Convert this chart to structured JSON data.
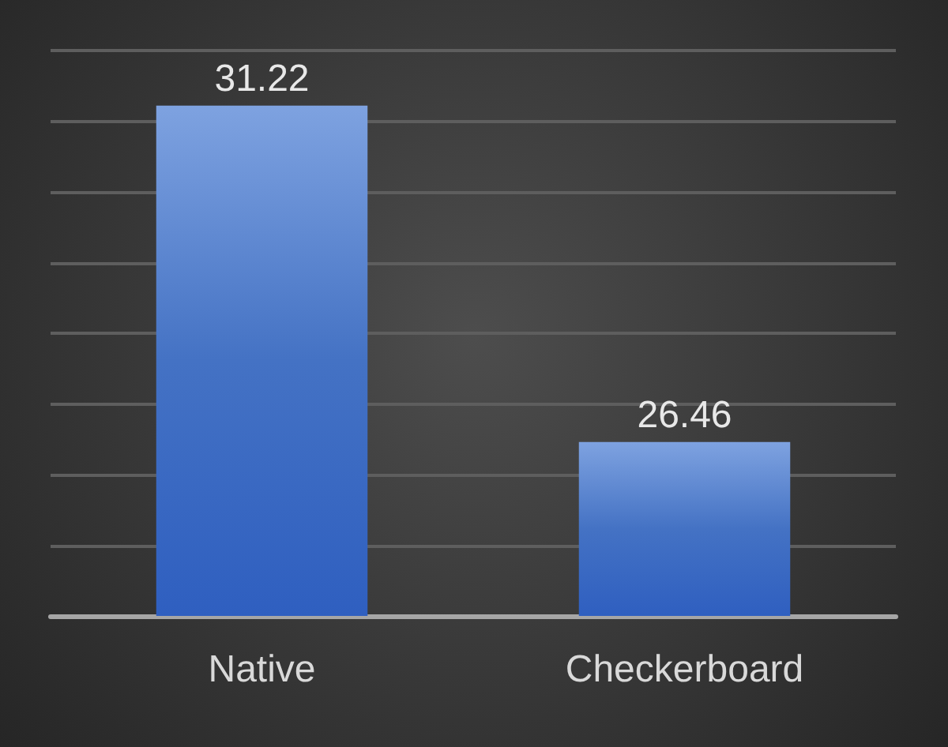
{
  "chart_data": {
    "type": "bar",
    "categories": [
      "Native",
      "Checkerboard"
    ],
    "values": [
      31.22,
      26.46
    ],
    "color": "#4472c4",
    "data_labels": true,
    "ylim": [
      24,
      32
    ],
    "yticks": [
      24,
      25,
      26,
      27,
      28,
      29,
      30,
      31,
      32
    ],
    "grid": "y",
    "tick_labels": "x"
  }
}
